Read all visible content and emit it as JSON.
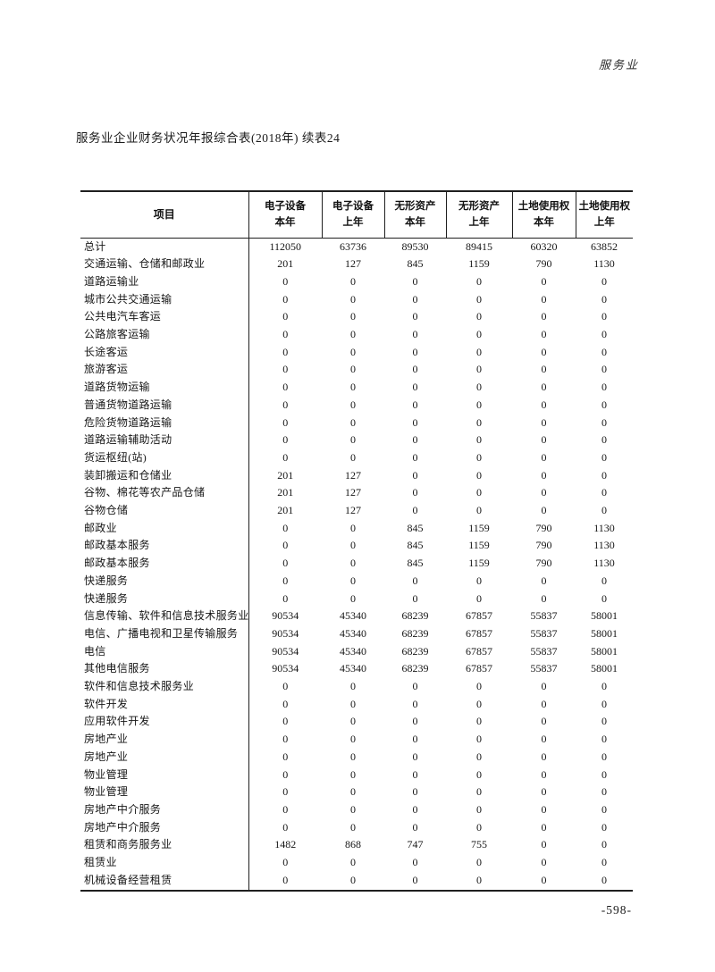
{
  "page": {
    "running_head": "服务业",
    "title": "服务业企业财务状况年报综合表(2018年) 续表24",
    "page_number": "-598-"
  },
  "table": {
    "item_column_header": "项目",
    "column_headers": [
      [
        "电子设备",
        "本年"
      ],
      [
        "电子设备",
        "上年"
      ],
      [
        "无形资产",
        "本年"
      ],
      [
        "无形资产",
        "上年"
      ],
      [
        "土地使用权",
        "本年"
      ],
      [
        "土地使用权",
        "上年"
      ]
    ],
    "rows": [
      {
        "label": "总计",
        "values": [
          "112050",
          "63736",
          "89530",
          "89415",
          "60320",
          "63852"
        ]
      },
      {
        "label": "交通运输、仓储和邮政业",
        "values": [
          "201",
          "127",
          "845",
          "1159",
          "790",
          "1130"
        ]
      },
      {
        "label": "道路运输业",
        "values": [
          "0",
          "0",
          "0",
          "0",
          "0",
          "0"
        ]
      },
      {
        "label": "城市公共交通运输",
        "values": [
          "0",
          "0",
          "0",
          "0",
          "0",
          "0"
        ]
      },
      {
        "label": "公共电汽车客运",
        "values": [
          "0",
          "0",
          "0",
          "0",
          "0",
          "0"
        ]
      },
      {
        "label": "公路旅客运输",
        "values": [
          "0",
          "0",
          "0",
          "0",
          "0",
          "0"
        ]
      },
      {
        "label": "长途客运",
        "values": [
          "0",
          "0",
          "0",
          "0",
          "0",
          "0"
        ]
      },
      {
        "label": "旅游客运",
        "values": [
          "0",
          "0",
          "0",
          "0",
          "0",
          "0"
        ]
      },
      {
        "label": "道路货物运输",
        "values": [
          "0",
          "0",
          "0",
          "0",
          "0",
          "0"
        ]
      },
      {
        "label": "普通货物道路运输",
        "values": [
          "0",
          "0",
          "0",
          "0",
          "0",
          "0"
        ]
      },
      {
        "label": "危险货物道路运输",
        "values": [
          "0",
          "0",
          "0",
          "0",
          "0",
          "0"
        ]
      },
      {
        "label": "道路运输辅助活动",
        "values": [
          "0",
          "0",
          "0",
          "0",
          "0",
          "0"
        ]
      },
      {
        "label": "货运枢纽(站)",
        "values": [
          "0",
          "0",
          "0",
          "0",
          "0",
          "0"
        ]
      },
      {
        "label": "装卸搬运和仓储业",
        "values": [
          "201",
          "127",
          "0",
          "0",
          "0",
          "0"
        ]
      },
      {
        "label": "谷物、棉花等农产品仓储",
        "values": [
          "201",
          "127",
          "0",
          "0",
          "0",
          "0"
        ]
      },
      {
        "label": "谷物仓储",
        "values": [
          "201",
          "127",
          "0",
          "0",
          "0",
          "0"
        ]
      },
      {
        "label": "邮政业",
        "values": [
          "0",
          "0",
          "845",
          "1159",
          "790",
          "1130"
        ]
      },
      {
        "label": "邮政基本服务",
        "values": [
          "0",
          "0",
          "845",
          "1159",
          "790",
          "1130"
        ]
      },
      {
        "label": "邮政基本服务",
        "values": [
          "0",
          "0",
          "845",
          "1159",
          "790",
          "1130"
        ]
      },
      {
        "label": "快递服务",
        "values": [
          "0",
          "0",
          "0",
          "0",
          "0",
          "0"
        ]
      },
      {
        "label": "快递服务",
        "values": [
          "0",
          "0",
          "0",
          "0",
          "0",
          "0"
        ]
      },
      {
        "label": "信息传输、软件和信息技术服务业",
        "values": [
          "90534",
          "45340",
          "68239",
          "67857",
          "55837",
          "58001"
        ]
      },
      {
        "label": "电信、广播电视和卫星传输服务",
        "values": [
          "90534",
          "45340",
          "68239",
          "67857",
          "55837",
          "58001"
        ]
      },
      {
        "label": "电信",
        "values": [
          "90534",
          "45340",
          "68239",
          "67857",
          "55837",
          "58001"
        ]
      },
      {
        "label": "其他电信服务",
        "values": [
          "90534",
          "45340",
          "68239",
          "67857",
          "55837",
          "58001"
        ]
      },
      {
        "label": "软件和信息技术服务业",
        "values": [
          "0",
          "0",
          "0",
          "0",
          "0",
          "0"
        ]
      },
      {
        "label": "软件开发",
        "values": [
          "0",
          "0",
          "0",
          "0",
          "0",
          "0"
        ]
      },
      {
        "label": "应用软件开发",
        "values": [
          "0",
          "0",
          "0",
          "0",
          "0",
          "0"
        ]
      },
      {
        "label": "房地产业",
        "values": [
          "0",
          "0",
          "0",
          "0",
          "0",
          "0"
        ]
      },
      {
        "label": "房地产业",
        "values": [
          "0",
          "0",
          "0",
          "0",
          "0",
          "0"
        ]
      },
      {
        "label": "物业管理",
        "values": [
          "0",
          "0",
          "0",
          "0",
          "0",
          "0"
        ]
      },
      {
        "label": "物业管理",
        "values": [
          "0",
          "0",
          "0",
          "0",
          "0",
          "0"
        ]
      },
      {
        "label": "房地产中介服务",
        "values": [
          "0",
          "0",
          "0",
          "0",
          "0",
          "0"
        ]
      },
      {
        "label": "房地产中介服务",
        "values": [
          "0",
          "0",
          "0",
          "0",
          "0",
          "0"
        ]
      },
      {
        "label": "租赁和商务服务业",
        "values": [
          "1482",
          "868",
          "747",
          "755",
          "0",
          "0"
        ]
      },
      {
        "label": "租赁业",
        "values": [
          "0",
          "0",
          "0",
          "0",
          "0",
          "0"
        ]
      },
      {
        "label": "机械设备经营租赁",
        "values": [
          "0",
          "0",
          "0",
          "0",
          "0",
          "0"
        ]
      }
    ]
  }
}
